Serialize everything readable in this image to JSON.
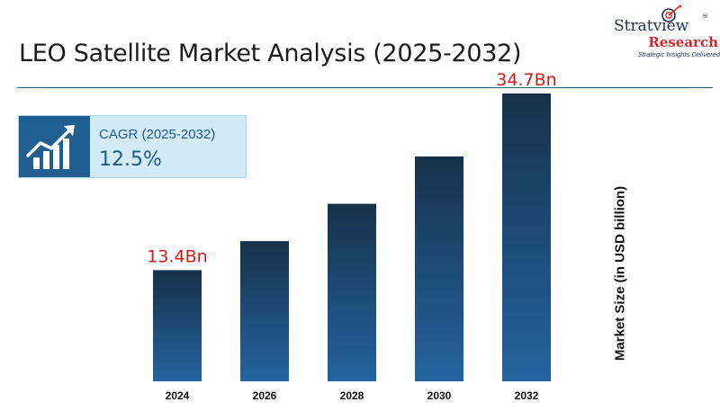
{
  "header": {
    "title": "LEO Satellite Market Analysis (2025-2032)"
  },
  "logo": {
    "name": "Stratview",
    "registered": "®",
    "sub": "Research",
    "tagline": "Strategic Insights Delivered"
  },
  "cagr": {
    "label": "CAGR (2025-2032)",
    "value": "12.5%",
    "icon": "growth-chart-icon"
  },
  "colors": {
    "bar_top": "#16324a",
    "bar_bottom": "#2563a0",
    "data_label": "#d41b1b",
    "rule": "#1f5a7a",
    "cagr_box": "#d2ebf6"
  },
  "chart_data": {
    "type": "bar",
    "categories": [
      "2024",
      "2026",
      "2028",
      "2030",
      "2032"
    ],
    "values": [
      13.4,
      16.9,
      21.4,
      27.1,
      34.7
    ],
    "data_labels": [
      "13.4Bn",
      "",
      "",
      "",
      "34.7Bn"
    ],
    "ylabel": "Market Size (in USD billion)",
    "ylim": [
      0,
      40
    ],
    "grid": false,
    "legend": "none"
  }
}
